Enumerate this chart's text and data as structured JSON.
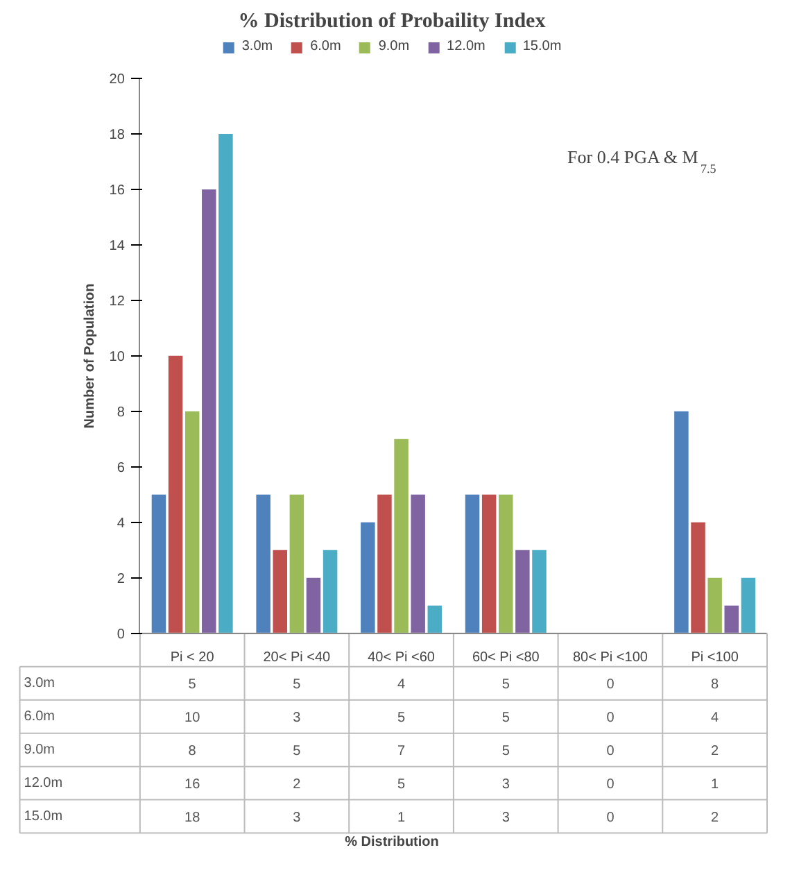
{
  "chart_data": {
    "type": "bar",
    "title": "% Distribution of Probaility Index",
    "ylabel": "Number of Population",
    "annotations": [
      "For 0.4 PGA & M$_{7.5}$",
      "% Distribution"
    ],
    "categories": [
      "Pi < 20",
      "20< Pi <40",
      "40< Pi <60",
      "60< Pi <80",
      "80< Pi <100",
      "Pi <100"
    ],
    "series": [
      {
        "name": "3.0m",
        "color": "#4f81bd",
        "values": [
          5,
          5,
          4,
          5,
          0,
          8
        ]
      },
      {
        "name": "6.0m",
        "color": "#c0504d",
        "values": [
          10,
          3,
          5,
          5,
          0,
          4
        ]
      },
      {
        "name": "9.0m",
        "color": "#9bbb59",
        "values": [
          8,
          5,
          7,
          5,
          0,
          2
        ]
      },
      {
        "name": "12.0m",
        "color": "#8064a2",
        "values": [
          16,
          2,
          5,
          3,
          0,
          1
        ]
      },
      {
        "name": "15.0m",
        "color": "#4bacc6",
        "values": [
          18,
          3,
          1,
          3,
          0,
          2
        ]
      }
    ],
    "ylim": [
      0,
      20
    ],
    "yticks": [
      0,
      2,
      4,
      6,
      8,
      10,
      12,
      14,
      16,
      18,
      20
    ],
    "grid": false,
    "legend": "top",
    "data_labels": true
  }
}
